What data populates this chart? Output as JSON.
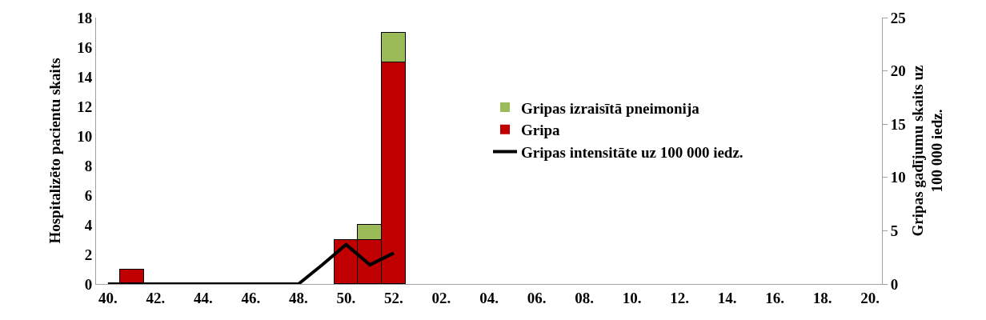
{
  "chart_data": {
    "type": "bar",
    "stacked": true,
    "ylabel": "Hospitalizēto pacientu skaits",
    "y2label": "Gripas gadījumu skaits uz 100 000 iedz.",
    "categories": [
      "40.",
      null,
      "42.",
      null,
      "44.",
      null,
      "46.",
      null,
      "48.",
      null,
      "50.",
      null,
      "52.",
      null,
      "02.",
      null,
      "04.",
      null,
      "06.",
      null,
      "08.",
      null,
      "10.",
      null,
      "12.",
      null,
      "14.",
      null,
      "16.",
      null,
      "18.",
      null,
      "20."
    ],
    "series": [
      {
        "name": "Gripa",
        "color": "#c00000",
        "values": [
          0,
          1,
          0,
          0,
          0,
          0,
          0,
          0,
          0,
          0,
          3,
          3,
          15,
          null,
          null,
          null,
          null,
          null,
          null,
          null,
          null,
          null,
          null,
          null,
          null,
          null,
          null,
          null,
          null,
          null,
          null,
          null,
          null
        ]
      },
      {
        "name": "Gripas izraisītā pneimonija",
        "color": "#9bbb59",
        "values": [
          0,
          0,
          0,
          0,
          0,
          0,
          0,
          0,
          0,
          0,
          0,
          1,
          2,
          null,
          null,
          null,
          null,
          null,
          null,
          null,
          null,
          null,
          null,
          null,
          null,
          null,
          null,
          null,
          null,
          null,
          null,
          null,
          null
        ]
      },
      {
        "name": "Gripas intensitāte uz 100 000 iedz.",
        "type": "line",
        "axis": "y2",
        "color": "#000000",
        "values": [
          0,
          0,
          0,
          0,
          0,
          0,
          0,
          0,
          0,
          1.8,
          3.7,
          1.8,
          2.9,
          null,
          null,
          null,
          null,
          null,
          null,
          null,
          null,
          null,
          null,
          null,
          null,
          null,
          null,
          null,
          null,
          null,
          null,
          null,
          null
        ]
      }
    ],
    "ylim": [
      0,
      18
    ],
    "yticks": [
      0,
      2,
      4,
      6,
      8,
      10,
      12,
      14,
      16,
      18
    ],
    "y2lim": [
      0,
      25
    ],
    "y2ticks": [
      0,
      5,
      10,
      15,
      20,
      25
    ],
    "legend": "right",
    "marker": "none",
    "line_style": "solid"
  }
}
